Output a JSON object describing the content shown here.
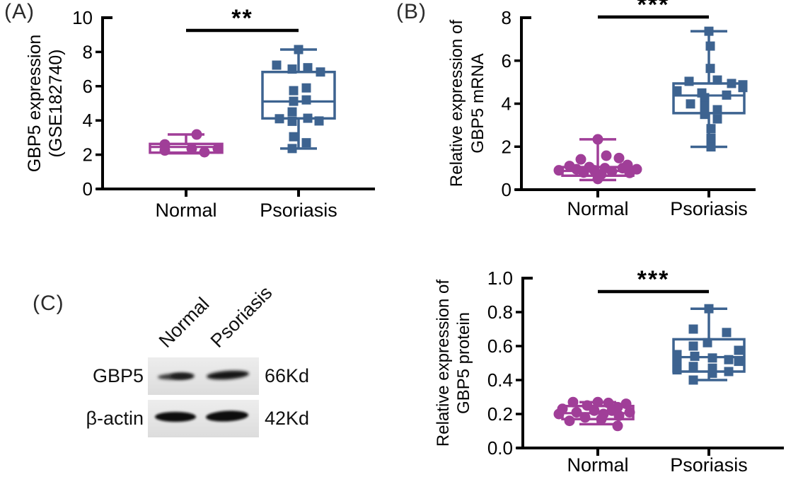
{
  "figure": {
    "background": "#ffffff",
    "panel_labels": {
      "a": "(A)",
      "b": "(B)",
      "c": "(C)"
    }
  },
  "colors": {
    "normal_group": "#a03e98",
    "psoriasis_group": "#3d6390",
    "axis": "#000000"
  },
  "chart_data": [
    {
      "id": "chart-a",
      "type": "box-scatter",
      "title": "",
      "ylabel_lines": [
        "GBP5 expression",
        "(GSE182740)"
      ],
      "ylim": [
        0,
        10
      ],
      "ytick_values": [
        0,
        2,
        4,
        6,
        8,
        10
      ],
      "ytick_labels": [
        "0",
        "2",
        "4",
        "6",
        "8",
        "10"
      ],
      "categories": [
        "Normal",
        "Psoriasis"
      ],
      "significance": "**",
      "grid": false,
      "groups": [
        {
          "name": "Normal",
          "marker": "circle",
          "color": "#a03e98",
          "box": {
            "min": 2.08,
            "q1": 2.12,
            "median": 2.45,
            "q3": 2.63,
            "max": 3.18
          },
          "points": [
            [
              3.18,
              15
            ],
            [
              2.6,
              -30
            ],
            [
              2.25,
              -30
            ],
            [
              2.36,
              8
            ],
            [
              2.15,
              26
            ],
            [
              2.36,
              45
            ]
          ]
        },
        {
          "name": "Psoriasis",
          "marker": "square",
          "color": "#3d6390",
          "box": {
            "min": 2.36,
            "q1": 4.12,
            "median": 5.11,
            "q3": 6.83,
            "max": 8.14
          },
          "points": [
            [
              8.14,
              0
            ],
            [
              7.23,
              -31
            ],
            [
              7.08,
              13
            ],
            [
              7.0,
              -9
            ],
            [
              6.83,
              31
            ],
            [
              5.9,
              11
            ],
            [
              5.74,
              -7
            ],
            [
              5.2,
              11
            ],
            [
              5.12,
              -7
            ],
            [
              4.5,
              -9
            ],
            [
              4.13,
              13
            ],
            [
              4.1,
              -27
            ],
            [
              3.97,
              29
            ],
            [
              3.95,
              -9
            ],
            [
              3.05,
              -7
            ],
            [
              2.7,
              11
            ],
            [
              2.36,
              -9
            ]
          ]
        }
      ]
    },
    {
      "id": "chart-b",
      "type": "box-scatter",
      "title": "",
      "ylabel_lines": [
        "Relative expression of",
        "GBP5 mRNA"
      ],
      "ylim": [
        0,
        8
      ],
      "ytick_values": [
        0,
        2,
        4,
        6,
        8
      ],
      "ytick_labels": [
        "0",
        "2",
        "4",
        "6",
        "8"
      ],
      "categories": [
        "Normal",
        "Psoriasis"
      ],
      "significance": "***",
      "grid": false,
      "groups": [
        {
          "name": "Normal",
          "marker": "circle",
          "color": "#a03e98",
          "box": {
            "min": 0.45,
            "q1": 0.65,
            "median": 0.87,
            "q3": 1.05,
            "max": 2.34
          },
          "points": [
            [
              2.34,
              0
            ],
            [
              1.58,
              12
            ],
            [
              1.47,
              30
            ],
            [
              1.41,
              -24
            ],
            [
              1.15,
              42
            ],
            [
              1.1,
              -40
            ],
            [
              1.05,
              -12
            ],
            [
              1.0,
              10
            ],
            [
              1.0,
              35
            ],
            [
              0.95,
              -30
            ],
            [
              0.95,
              55
            ],
            [
              0.9,
              -55
            ],
            [
              0.9,
              -5
            ],
            [
              0.85,
              20
            ],
            [
              0.8,
              -20
            ],
            [
              0.78,
              45
            ],
            [
              0.72,
              5
            ],
            [
              0.5,
              0
            ]
          ]
        },
        {
          "name": "Psoriasis",
          "marker": "square",
          "color": "#3d6390",
          "box": {
            "min": 1.99,
            "q1": 3.56,
            "median": 4.38,
            "q3": 4.94,
            "max": 7.37
          },
          "points": [
            [
              7.37,
              0
            ],
            [
              6.68,
              2
            ],
            [
              5.64,
              2
            ],
            [
              5.1,
              12
            ],
            [
              5.04,
              -28
            ],
            [
              4.94,
              32
            ],
            [
              4.88,
              48
            ],
            [
              4.75,
              48
            ],
            [
              4.6,
              -45
            ],
            [
              4.5,
              -10
            ],
            [
              4.4,
              25
            ],
            [
              4.28,
              -6
            ],
            [
              3.99,
              -26
            ],
            [
              3.88,
              -6
            ],
            [
              3.72,
              12
            ],
            [
              3.5,
              -6
            ],
            [
              3.29,
              12
            ],
            [
              2.84,
              3
            ],
            [
              2.4,
              3
            ],
            [
              1.99,
              3
            ]
          ]
        }
      ]
    },
    {
      "id": "chart-d",
      "type": "box-scatter",
      "title": "",
      "ylabel_lines": [
        "Relative expression of",
        "GBP5 protein"
      ],
      "ylim": [
        0,
        1
      ],
      "ytick_values": [
        0,
        0.2,
        0.4,
        0.6,
        0.8,
        1.0
      ],
      "ytick_labels": [
        "0.0",
        "0.2",
        "0.4",
        "0.6",
        "0.8",
        "1.0"
      ],
      "categories": [
        "Normal",
        "Psoriasis"
      ],
      "significance": "***",
      "grid": false,
      "groups": [
        {
          "name": "Normal",
          "marker": "circle",
          "color": "#a03e98",
          "box": {
            "min": 0.14,
            "q1": 0.17,
            "median": 0.205,
            "q3": 0.247,
            "max": 0.27
          },
          "points": [
            [
              0.27,
              -35
            ],
            [
              0.27,
              0
            ],
            [
              0.265,
              15
            ],
            [
              0.26,
              40
            ],
            [
              0.25,
              -15
            ],
            [
              0.24,
              28
            ],
            [
              0.23,
              -50
            ],
            [
              0.22,
              -5
            ],
            [
              0.22,
              20
            ],
            [
              0.21,
              -30
            ],
            [
              0.21,
              45
            ],
            [
              0.2,
              8
            ],
            [
              0.2,
              -55
            ],
            [
              0.19,
              30
            ],
            [
              0.18,
              -18
            ],
            [
              0.17,
              5
            ],
            [
              0.16,
              -40
            ],
            [
              0.13,
              28
            ]
          ]
        },
        {
          "name": "Psoriasis",
          "marker": "square",
          "color": "#3d6390",
          "box": {
            "min": 0.4,
            "q1": 0.45,
            "median": 0.535,
            "q3": 0.64,
            "max": 0.82
          },
          "points": [
            [
              0.82,
              0
            ],
            [
              0.7,
              -22
            ],
            [
              0.68,
              25
            ],
            [
              0.62,
              -2
            ],
            [
              0.6,
              -22
            ],
            [
              0.575,
              42
            ],
            [
              0.55,
              -45
            ],
            [
              0.54,
              -20
            ],
            [
              0.53,
              5
            ],
            [
              0.52,
              28
            ],
            [
              0.51,
              42
            ],
            [
              0.5,
              -45
            ],
            [
              0.48,
              -22
            ],
            [
              0.47,
              5
            ],
            [
              0.46,
              -45
            ],
            [
              0.45,
              28
            ],
            [
              0.44,
              5
            ],
            [
              0.4,
              -22
            ]
          ]
        }
      ]
    }
  ],
  "blot": {
    "lane_labels": [
      "Normal",
      "Psoriasis"
    ],
    "rows": [
      {
        "protein": "GBP5",
        "molecular_weight": "66Kd"
      },
      {
        "protein": "β-actin",
        "molecular_weight": "42Kd"
      }
    ]
  }
}
